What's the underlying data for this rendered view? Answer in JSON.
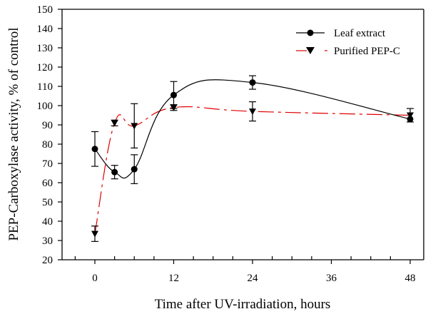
{
  "chart_data": {
    "type": "line",
    "title": "",
    "xlabel": "Time after UV-irradiation, hours",
    "ylabel": "PEP-Carboxylase activity, % of control",
    "xlim": [
      -5,
      50
    ],
    "ylim": [
      20,
      150
    ],
    "x_ticks": [
      0,
      12,
      24,
      36,
      48
    ],
    "x_minor_step": 3,
    "y_ticks": [
      20,
      30,
      40,
      50,
      60,
      70,
      80,
      90,
      100,
      110,
      120,
      130,
      140,
      150
    ],
    "grid": false,
    "legend_position": "top-right",
    "series": [
      {
        "name": "Leaf extract",
        "color": "#000000",
        "line_style": "solid",
        "marker": "circle",
        "x": [
          0,
          3,
          6,
          12,
          24,
          48
        ],
        "y": [
          77.5,
          65.5,
          67,
          105.5,
          112,
          93
        ],
        "error": [
          9,
          3.5,
          7.5,
          7,
          3.5,
          0
        ]
      },
      {
        "name": "Purified PEP-C",
        "color": "#e00000",
        "line_style": "dashed",
        "marker": "triangle-down",
        "x": [
          0,
          3,
          6,
          12,
          24,
          48
        ],
        "y": [
          33.5,
          91,
          89.5,
          99,
          97,
          95
        ],
        "error": [
          4,
          1.5,
          11.5,
          1.5,
          5,
          3.5
        ]
      }
    ]
  }
}
